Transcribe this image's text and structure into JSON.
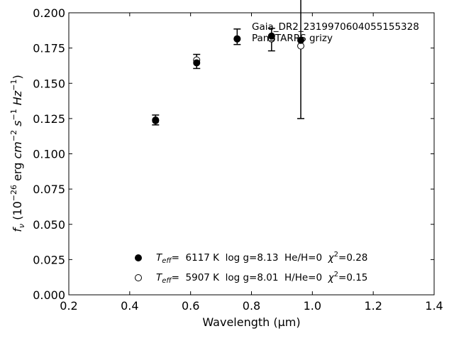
{
  "chart_data": {
    "type": "scatter",
    "xlabel": "Wavelength (μm)",
    "ylabel_parts": [
      "f",
      "ν",
      " (10",
      "−26",
      " erg ",
      "cm",
      "−2",
      " s",
      "−1",
      " Hz",
      "−1",
      ")"
    ],
    "xlim": [
      0.2,
      1.4
    ],
    "ylim": [
      0.0,
      0.2
    ],
    "x_ticks": [
      0.2,
      0.4,
      0.6,
      0.8,
      1.0,
      1.2,
      1.4
    ],
    "x_tick_labels": [
      "0.2",
      "0.4",
      "0.6",
      "0.8",
      "1.0",
      "1.2",
      "1.4"
    ],
    "y_ticks": [
      0.0,
      0.025,
      0.05,
      0.075,
      0.1,
      0.125,
      0.15,
      0.175,
      0.2
    ],
    "y_tick_labels": [
      "0.000",
      "0.025",
      "0.050",
      "0.075",
      "0.100",
      "0.125",
      "0.150",
      "0.175",
      "0.200"
    ],
    "grid": false,
    "annotation": {
      "line1": "Gaia_DR2_2319970604055155328",
      "line2": "PanSTARRS grizy"
    },
    "observed": {
      "x": [
        0.485,
        0.62,
        0.753,
        0.866,
        0.962
      ],
      "y": [
        0.124,
        0.1655,
        0.183,
        0.181,
        0.1805
      ],
      "err": [
        0.0035,
        0.005,
        0.0055,
        0.008,
        0.0555
      ]
    },
    "series": [
      {
        "name": "Teff= 6117 K log g=8.13 He/H=0 χ2=0.28",
        "marker": "filled",
        "legend_parts": [
          "T",
          "eff",
          "=  6117 K  log g=8.13  He/H=0  ",
          "χ",
          "2",
          "=0.28"
        ],
        "x": [
          0.485,
          0.62,
          0.753,
          0.866,
          0.962
        ],
        "y": [
          0.1235,
          0.1645,
          0.1815,
          0.1835,
          0.1805
        ]
      },
      {
        "name": "Teff= 5907 K log g=8.01 H/He=0 χ2=0.15",
        "marker": "open",
        "legend_parts": [
          "T",
          "eff",
          "=  5907 K  log g=8.01  H/He=0  ",
          "χ",
          "2",
          "=0.15"
        ],
        "x": [
          0.485,
          0.62,
          0.753,
          0.866,
          0.962
        ],
        "y": [
          0.124,
          0.1665,
          0.1815,
          0.1815,
          0.1765
        ]
      }
    ],
    "legend_position": "lower-center"
  }
}
